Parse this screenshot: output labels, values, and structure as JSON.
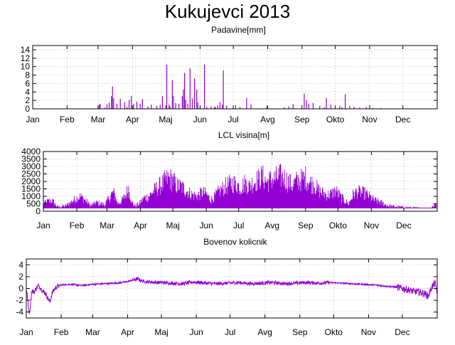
{
  "main_title": "Kukujevci 2013",
  "colors": {
    "series": "#9400d3",
    "grid": "#b0b0b0",
    "frame": "#000000"
  },
  "chart_data": [
    {
      "type": "bar",
      "title": "Padavine[mm]",
      "x_tick_labels": [
        "Jan",
        "Feb",
        "Mar",
        "Apr",
        "Maj",
        "Jun",
        "Jul",
        "Avg",
        "Sep",
        "Okto",
        "Nov",
        "Dec"
      ],
      "x_ticks_day": [
        1,
        32,
        60,
        91,
        121,
        152,
        182,
        213,
        244,
        274,
        305,
        335
      ],
      "xlim": [
        1,
        366
      ],
      "ylim": [
        0,
        15
      ],
      "y_ticks": [
        0,
        2,
        4,
        6,
        8,
        10,
        12,
        14
      ],
      "grid": true,
      "points": [
        [
          61,
          1.0
        ],
        [
          62,
          1.2
        ],
        [
          66,
          0.3
        ],
        [
          68,
          1.1
        ],
        [
          70,
          1.5
        ],
        [
          72,
          3.0
        ],
        [
          73,
          5.3
        ],
        [
          74,
          2.5
        ],
        [
          77,
          1.2
        ],
        [
          80,
          2.4
        ],
        [
          84,
          1.6
        ],
        [
          86,
          0.5
        ],
        [
          88,
          2.1
        ],
        [
          90,
          3.1
        ],
        [
          92,
          1.2
        ],
        [
          95,
          1.7
        ],
        [
          98,
          1.2
        ],
        [
          100,
          2.3
        ],
        [
          105,
          0.6
        ],
        [
          108,
          1.0
        ],
        [
          113,
          0.7
        ],
        [
          116,
          1.0
        ],
        [
          118,
          3.0
        ],
        [
          122,
          10.5
        ],
        [
          124,
          1.0
        ],
        [
          125,
          0.6
        ],
        [
          127,
          6.8
        ],
        [
          128,
          3.0
        ],
        [
          130,
          1.4
        ],
        [
          133,
          1.2
        ],
        [
          136,
          3.0
        ],
        [
          137,
          4.6
        ],
        [
          138,
          8.5
        ],
        [
          139,
          2.1
        ],
        [
          141,
          1.2
        ],
        [
          143,
          9.6
        ],
        [
          145,
          2.5
        ],
        [
          147,
          7.2
        ],
        [
          149,
          4.6
        ],
        [
          150,
          1.5
        ],
        [
          156,
          10.5
        ],
        [
          158,
          0.5
        ],
        [
          162,
          0.6
        ],
        [
          165,
          0.5
        ],
        [
          166,
          0.4
        ],
        [
          168,
          0.8
        ],
        [
          170,
          1.6
        ],
        [
          172,
          1.0
        ],
        [
          173,
          9.1
        ],
        [
          176,
          0.8
        ],
        [
          184,
          0.9
        ],
        [
          188,
          0.5
        ],
        [
          194,
          2.6
        ],
        [
          198,
          1.0
        ],
        [
          212,
          0.6
        ],
        [
          228,
          0.4
        ],
        [
          232,
          0.6
        ],
        [
          236,
          1.1
        ],
        [
          246,
          3.6
        ],
        [
          248,
          2.1
        ],
        [
          250,
          1.2
        ],
        [
          254,
          1.4
        ],
        [
          260,
          0.7
        ],
        [
          264,
          0.4
        ],
        [
          266,
          2.6
        ],
        [
          270,
          1.0
        ],
        [
          278,
          0.7
        ],
        [
          280,
          0.4
        ],
        [
          283,
          3.5
        ],
        [
          287,
          0.7
        ],
        [
          291,
          0.5
        ],
        [
          296,
          0.3
        ],
        [
          302,
          0.5
        ],
        [
          308,
          0.2
        ],
        [
          315,
          0.2
        ]
      ]
    },
    {
      "type": "bar",
      "title": "LCL visina[m]",
      "x_tick_labels": [
        "Jan",
        "Feb",
        "Mar",
        "Apr",
        "Maj",
        "Jun",
        "Jul",
        "Avg",
        "Sep",
        "Okto",
        "Nov",
        "Dec"
      ],
      "x_ticks_day": [
        1,
        32,
        60,
        91,
        121,
        152,
        182,
        213,
        244,
        274,
        305,
        335
      ],
      "xlim": [
        1,
        366
      ],
      "ylim": [
        0,
        4000
      ],
      "y_ticks": [
        0,
        500,
        1000,
        1500,
        2000,
        2500,
        3000,
        3500,
        4000
      ],
      "grid": true,
      "daily_peak_approx": [
        [
          1,
          700
        ],
        [
          5,
          900
        ],
        [
          9,
          1000
        ],
        [
          14,
          400
        ],
        [
          22,
          500
        ],
        [
          30,
          1100
        ],
        [
          33,
          1300
        ],
        [
          35,
          1350
        ],
        [
          38,
          1200
        ],
        [
          45,
          500
        ],
        [
          50,
          800
        ],
        [
          58,
          600
        ],
        [
          62,
          1200
        ],
        [
          64,
          1550
        ],
        [
          66,
          1700
        ],
        [
          68,
          1300
        ],
        [
          70,
          700
        ],
        [
          73,
          900
        ],
        [
          77,
          1400
        ],
        [
          80,
          2150
        ],
        [
          83,
          800
        ],
        [
          86,
          500
        ],
        [
          90,
          700
        ],
        [
          94,
          1200
        ],
        [
          97,
          1300
        ],
        [
          100,
          1500
        ],
        [
          103,
          1850
        ],
        [
          106,
          2100
        ],
        [
          109,
          2350
        ],
        [
          112,
          2600
        ],
        [
          115,
          2900
        ],
        [
          118,
          3000
        ],
        [
          121,
          2850
        ],
        [
          124,
          2400
        ],
        [
          128,
          2300
        ],
        [
          132,
          2050
        ],
        [
          136,
          1700
        ],
        [
          140,
          1500
        ],
        [
          144,
          1400
        ],
        [
          148,
          1750
        ],
        [
          152,
          1600
        ],
        [
          156,
          1050
        ],
        [
          160,
          1350
        ],
        [
          164,
          1850
        ],
        [
          168,
          2150
        ],
        [
          172,
          2400
        ],
        [
          176,
          2600
        ],
        [
          180,
          2500
        ],
        [
          184,
          2200
        ],
        [
          188,
          2600
        ],
        [
          192,
          2300
        ],
        [
          196,
          2700
        ],
        [
          200,
          2900
        ],
        [
          204,
          3200
        ],
        [
          208,
          2700
        ],
        [
          212,
          2900
        ],
        [
          216,
          3000
        ],
        [
          220,
          3250
        ],
        [
          224,
          3100
        ],
        [
          228,
          2700
        ],
        [
          232,
          2400
        ],
        [
          236,
          2800
        ],
        [
          240,
          2900
        ],
        [
          244,
          3100
        ],
        [
          248,
          2600
        ],
        [
          252,
          2500
        ],
        [
          256,
          1900
        ],
        [
          260,
          1700
        ],
        [
          264,
          1500
        ],
        [
          268,
          1600
        ],
        [
          272,
          1900
        ],
        [
          276,
          1400
        ],
        [
          280,
          1000
        ],
        [
          284,
          700
        ],
        [
          288,
          1500
        ],
        [
          292,
          1800
        ],
        [
          296,
          1700
        ],
        [
          300,
          1600
        ],
        [
          304,
          1300
        ],
        [
          308,
          1000
        ],
        [
          312,
          900
        ],
        [
          318,
          600
        ],
        [
          324,
          450
        ],
        [
          330,
          400
        ],
        [
          338,
          350
        ],
        [
          346,
          300
        ],
        [
          354,
          250
        ],
        [
          360,
          250
        ],
        [
          364,
          700
        ]
      ],
      "baseline_approx": 220
    },
    {
      "type": "line",
      "title": "Bovenov kolicnik",
      "x_tick_labels": [
        "Jan",
        "Feb",
        "Mar",
        "Apr",
        "Maj",
        "Jun",
        "Jul",
        "Avg",
        "Sep",
        "Okto",
        "Nov",
        "Dec"
      ],
      "x_ticks_day": [
        1,
        32,
        60,
        91,
        121,
        152,
        182,
        213,
        244,
        274,
        305,
        335
      ],
      "xlim": [
        1,
        366
      ],
      "ylim": [
        -5,
        5
      ],
      "y_ticks": [
        -4,
        -2,
        0,
        2,
        4
      ],
      "grid": true,
      "x": [
        1,
        2,
        3,
        4,
        5,
        6,
        8,
        10,
        12,
        15,
        18,
        20,
        22,
        24,
        26,
        28,
        32,
        40,
        50,
        60,
        70,
        80,
        90,
        95,
        100,
        105,
        110,
        120,
        130,
        140,
        150,
        160,
        170,
        180,
        190,
        200,
        210,
        220,
        230,
        240,
        250,
        260,
        270,
        280,
        290,
        300,
        310,
        320,
        330,
        340,
        345,
        350,
        355,
        358,
        361,
        364,
        366
      ],
      "y": [
        0,
        -1.5,
        -3.5,
        -4.1,
        -2.0,
        -0.4,
        -0.6,
        0.1,
        0.5,
        -0.3,
        -0.8,
        -1.6,
        -2.3,
        -0.8,
        -0.1,
        0.3,
        0.6,
        0.7,
        0.5,
        0.7,
        0.8,
        0.9,
        1.1,
        1.4,
        1.6,
        1.2,
        1.1,
        1.0,
        0.9,
        0.8,
        1.1,
        0.9,
        0.8,
        0.9,
        1.0,
        0.8,
        0.9,
        1.0,
        0.8,
        0.9,
        1.0,
        0.9,
        1.0,
        0.9,
        0.8,
        0.7,
        0.6,
        0.4,
        0.2,
        -0.2,
        -0.5,
        -0.6,
        -0.9,
        -1.3,
        0.2,
        0.9,
        -0.5
      ]
    }
  ]
}
